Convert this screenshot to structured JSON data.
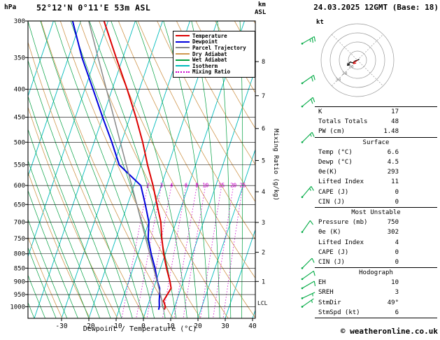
{
  "header": {
    "pressure_unit": "hPa",
    "station": "52°12'N 0°11'E 53m ASL",
    "altitude_unit_top": "km",
    "altitude_unit_bottom": "ASL",
    "datetime": "24.03.2025 12GMT (Base: 18)"
  },
  "labels": {
    "xlabel": "Dewpoint / Temperature (°C)",
    "right_axis": "Mixing Ratio (g/kg)",
    "lcl": "LCL",
    "hodograph_unit": "kt"
  },
  "colors": {
    "temperature": "#dd0000",
    "dewpoint": "#0000dd",
    "parcel": "#888888",
    "dry_adiabat": "#d09850",
    "wet_adiabat": "#00a040",
    "isotherm": "#00bbbb",
    "mixing_ratio": "#cc00cc",
    "wind_barb": "#00aa44",
    "axis": "#000000",
    "hodo_grid": "#999999"
  },
  "legend": {
    "items": [
      {
        "label": "Temperature",
        "color": "#dd0000",
        "style": "solid"
      },
      {
        "label": "Dewpoint",
        "color": "#0000dd",
        "style": "solid"
      },
      {
        "label": "Parcel Trajectory",
        "color": "#888888",
        "style": "solid"
      },
      {
        "label": "Dry Adiabat",
        "color": "#d09850",
        "style": "solid"
      },
      {
        "label": "Wet Adiabat",
        "color": "#00a040",
        "style": "solid"
      },
      {
        "label": "Isotherm",
        "color": "#00bbbb",
        "style": "solid"
      },
      {
        "label": "Mixing Ratio",
        "color": "#cc00cc",
        "style": "dotted"
      }
    ]
  },
  "chart_data": {
    "type": "line",
    "subtype": "skew-t-log-p-sounding",
    "pressure_axis": {
      "unit": "hPa",
      "range": [
        300,
        1050
      ],
      "ticks": [
        300,
        350,
        400,
        450,
        500,
        550,
        600,
        650,
        700,
        750,
        800,
        850,
        900,
        950,
        1000
      ]
    },
    "temp_axis": {
      "unit": "°C",
      "range_at_surface": [
        -30,
        40
      ],
      "ticks": [
        -30,
        -20,
        -10,
        0,
        10,
        20,
        30,
        40
      ]
    },
    "km_axis": {
      "unit": "km ASL",
      "ticks": [
        1,
        2,
        3,
        4,
        5,
        6,
        7,
        8
      ],
      "tick_pressures": [
        899,
        795,
        701,
        616,
        540,
        472,
        411,
        356
      ]
    },
    "isotherm_step": 10,
    "mixing_ratio_lines": [
      2,
      3,
      4,
      6,
      8,
      10,
      15,
      20,
      25
    ],
    "lcl_pressure": 975,
    "series": [
      {
        "name": "Temperature",
        "color": "#dd0000",
        "width": 2,
        "points": [
          [
            1013,
            6.6
          ],
          [
            1000,
            6.6
          ],
          [
            975,
            5.2
          ],
          [
            950,
            5.8
          ],
          [
            925,
            6.4
          ],
          [
            900,
            5.2
          ],
          [
            850,
            2.2
          ],
          [
            800,
            -0.6
          ],
          [
            750,
            -3.2
          ],
          [
            700,
            -5.6
          ],
          [
            650,
            -9.2
          ],
          [
            600,
            -13.0
          ],
          [
            550,
            -17.6
          ],
          [
            500,
            -22.2
          ],
          [
            450,
            -27.8
          ],
          [
            400,
            -34.5
          ],
          [
            350,
            -42.5
          ],
          [
            300,
            -51.5
          ]
        ]
      },
      {
        "name": "Dewpoint",
        "color": "#0000dd",
        "width": 2,
        "points": [
          [
            1013,
            4.5
          ],
          [
            1000,
            4.4
          ],
          [
            975,
            3.6
          ],
          [
            950,
            3.0
          ],
          [
            925,
            2.2
          ],
          [
            900,
            0.6
          ],
          [
            850,
            -2.0
          ],
          [
            800,
            -5.2
          ],
          [
            750,
            -8.2
          ],
          [
            700,
            -10.0
          ],
          [
            650,
            -13.5
          ],
          [
            600,
            -17.5
          ],
          [
            550,
            -28.0
          ],
          [
            500,
            -33.5
          ],
          [
            450,
            -40.0
          ],
          [
            400,
            -47.0
          ],
          [
            350,
            -55.0
          ],
          [
            300,
            -63.0
          ]
        ]
      },
      {
        "name": "Parcel Trajectory",
        "color": "#888888",
        "width": 1.5,
        "points": [
          [
            1013,
            6.6
          ],
          [
            1000,
            5.5
          ],
          [
            975,
            4.6
          ],
          [
            950,
            3.3
          ],
          [
            925,
            1.9
          ],
          [
            900,
            0.5
          ],
          [
            850,
            -2.5
          ],
          [
            800,
            -5.7
          ],
          [
            750,
            -9.1
          ],
          [
            700,
            -12.7
          ],
          [
            650,
            -16.6
          ],
          [
            600,
            -20.8
          ],
          [
            550,
            -25.4
          ],
          [
            500,
            -30.4
          ],
          [
            450,
            -35.9
          ],
          [
            400,
            -42.1
          ],
          [
            350,
            -49.1
          ],
          [
            300,
            -57.1
          ]
        ]
      }
    ],
    "wind_barbs": [
      {
        "p": 330,
        "dir": 60,
        "spd": 25
      },
      {
        "p": 390,
        "dir": 55,
        "spd": 20
      },
      {
        "p": 430,
        "dir": 50,
        "spd": 20
      },
      {
        "p": 500,
        "dir": 45,
        "spd": 15
      },
      {
        "p": 630,
        "dir": 40,
        "spd": 15
      },
      {
        "p": 730,
        "dir": 35,
        "spd": 10
      },
      {
        "p": 850,
        "dir": 45,
        "spd": 10
      },
      {
        "p": 890,
        "dir": 55,
        "spd": 10
      },
      {
        "p": 925,
        "dir": 60,
        "spd": 10
      },
      {
        "p": 965,
        "dir": 65,
        "spd": 5
      },
      {
        "p": 1000,
        "dir": 55,
        "spd": 5
      }
    ]
  },
  "hodograph": {
    "unit_label": "kt",
    "rings_kt": [
      10,
      20,
      30,
      40
    ],
    "ring_labels": [
      10,
      20,
      30
    ],
    "trace_uv": [
      [
        2,
        1
      ],
      [
        0,
        0
      ],
      [
        -3,
        -1
      ],
      [
        -5,
        -3
      ],
      [
        -8,
        -2
      ],
      [
        -11,
        -6
      ]
    ],
    "storm_uv": [
      -4.5,
      -3.9
    ],
    "storm_dir": "49°",
    "storm_speed_kt": 6
  },
  "stats": {
    "sections": [
      {
        "header": null,
        "rows": [
          [
            "K",
            "17"
          ],
          [
            "Totals Totals",
            "48"
          ],
          [
            "PW (cm)",
            "1.48"
          ]
        ]
      },
      {
        "header": "Surface",
        "rows": [
          [
            "Temp (°C)",
            "6.6"
          ],
          [
            "Dewp (°C)",
            "4.5"
          ],
          [
            "θe(K)",
            "293"
          ],
          [
            "Lifted Index",
            "11"
          ],
          [
            "CAPE (J)",
            "0"
          ],
          [
            "CIN (J)",
            "0"
          ]
        ]
      },
      {
        "header": "Most Unstable",
        "rows": [
          [
            "Pressure (mb)",
            "750"
          ],
          [
            "θe (K)",
            "302"
          ],
          [
            "Lifted Index",
            "4"
          ],
          [
            "CAPE (J)",
            "0"
          ],
          [
            "CIN (J)",
            "0"
          ]
        ]
      },
      {
        "header": "Hodograph",
        "rows": [
          [
            "EH",
            "10"
          ],
          [
            "SREH",
            "3"
          ],
          [
            "StmDir",
            "49°"
          ],
          [
            "StmSpd (kt)",
            "6"
          ]
        ]
      }
    ]
  },
  "footer": {
    "copyright": "© weatheronline.co.uk"
  }
}
